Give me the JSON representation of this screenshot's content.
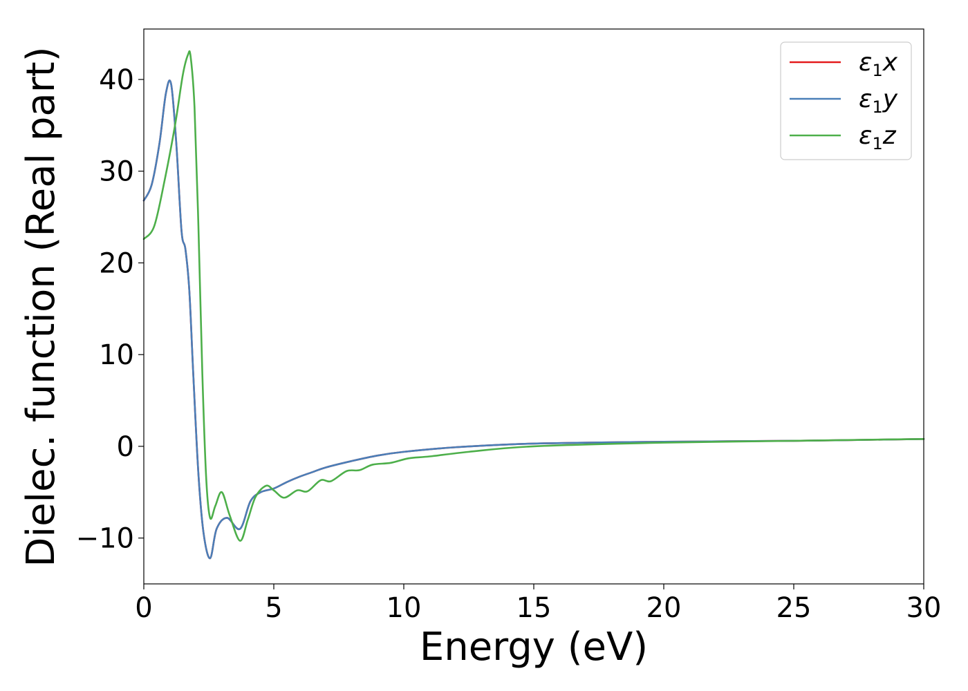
{
  "chart_data": {
    "type": "line",
    "xlabel": "Energy (eV)",
    "ylabel": "Dielec. function (Real part)",
    "xlim": [
      0,
      30
    ],
    "ylim": [
      -15,
      45.5
    ],
    "xticks": [
      0,
      5,
      10,
      15,
      20,
      25,
      30
    ],
    "yticks": [
      -10,
      0,
      10,
      20,
      30,
      40
    ],
    "ytick_labels": [
      "−10",
      "0",
      "10",
      "20",
      "30",
      "40"
    ],
    "legend_position": "top-right",
    "grid": false,
    "series": [
      {
        "name": "ε1x",
        "legend_main": "ε",
        "legend_sub": "1",
        "legend_var": "x",
        "color": "#e41a1c",
        "x": [
          0,
          0.3,
          0.6,
          0.85,
          1.05,
          1.25,
          1.45,
          1.6,
          1.75,
          1.9,
          2.1,
          2.3,
          2.55,
          2.8,
          3.2,
          3.7,
          4.1,
          4.5,
          5.0,
          5.5,
          6.0,
          6.5,
          7.0,
          8.0,
          9.0,
          10.0,
          12.0,
          15.0,
          20.0,
          25.0,
          30.0
        ],
        "y": [
          26.8,
          28.5,
          33.0,
          38.5,
          39.5,
          33.0,
          23.5,
          21.5,
          17.0,
          8.0,
          -3.0,
          -9.5,
          -12.2,
          -9.0,
          -7.8,
          -9.0,
          -6.0,
          -5.0,
          -4.6,
          -3.9,
          -3.3,
          -2.8,
          -2.3,
          -1.6,
          -1.0,
          -0.6,
          -0.1,
          0.3,
          0.5,
          0.6,
          0.8
        ]
      },
      {
        "name": "ε1y",
        "legend_main": "ε",
        "legend_sub": "1",
        "legend_var": "y",
        "color": "#4a7fb8",
        "x": [
          0,
          0.3,
          0.6,
          0.85,
          1.05,
          1.25,
          1.45,
          1.6,
          1.75,
          1.9,
          2.1,
          2.3,
          2.55,
          2.8,
          3.2,
          3.7,
          4.1,
          4.5,
          5.0,
          5.5,
          6.0,
          6.5,
          7.0,
          8.0,
          9.0,
          10.0,
          12.0,
          15.0,
          20.0,
          25.0,
          30.0
        ],
        "y": [
          26.8,
          28.5,
          33.0,
          38.5,
          39.5,
          33.0,
          23.5,
          21.5,
          17.0,
          8.0,
          -3.0,
          -9.5,
          -12.2,
          -9.0,
          -7.8,
          -9.0,
          -6.0,
          -5.0,
          -4.6,
          -3.9,
          -3.3,
          -2.8,
          -2.3,
          -1.6,
          -1.0,
          -0.6,
          -0.1,
          0.3,
          0.5,
          0.6,
          0.8
        ]
      },
      {
        "name": "ε1z",
        "legend_main": "ε",
        "legend_sub": "1",
        "legend_var": "z",
        "color": "#4daf4a",
        "x": [
          0,
          0.4,
          0.8,
          1.2,
          1.5,
          1.7,
          1.8,
          1.95,
          2.1,
          2.25,
          2.4,
          2.55,
          2.75,
          3.0,
          3.3,
          3.7,
          4.0,
          4.3,
          4.7,
          5.0,
          5.4,
          5.9,
          6.3,
          6.8,
          7.2,
          7.8,
          8.3,
          8.8,
          9.5,
          10.2,
          11.0,
          12.5,
          15.0,
          20.0,
          25.0,
          30.0
        ],
        "y": [
          22.6,
          24.0,
          29.0,
          35.0,
          40.5,
          42.7,
          42.5,
          37.0,
          24.0,
          8.0,
          -3.5,
          -7.8,
          -6.5,
          -5.0,
          -7.5,
          -10.3,
          -8.0,
          -5.5,
          -4.3,
          -4.8,
          -5.6,
          -4.8,
          -4.9,
          -3.7,
          -3.8,
          -2.7,
          -2.6,
          -2.0,
          -1.8,
          -1.3,
          -1.1,
          -0.6,
          0.0,
          0.4,
          0.6,
          0.8
        ]
      }
    ]
  }
}
